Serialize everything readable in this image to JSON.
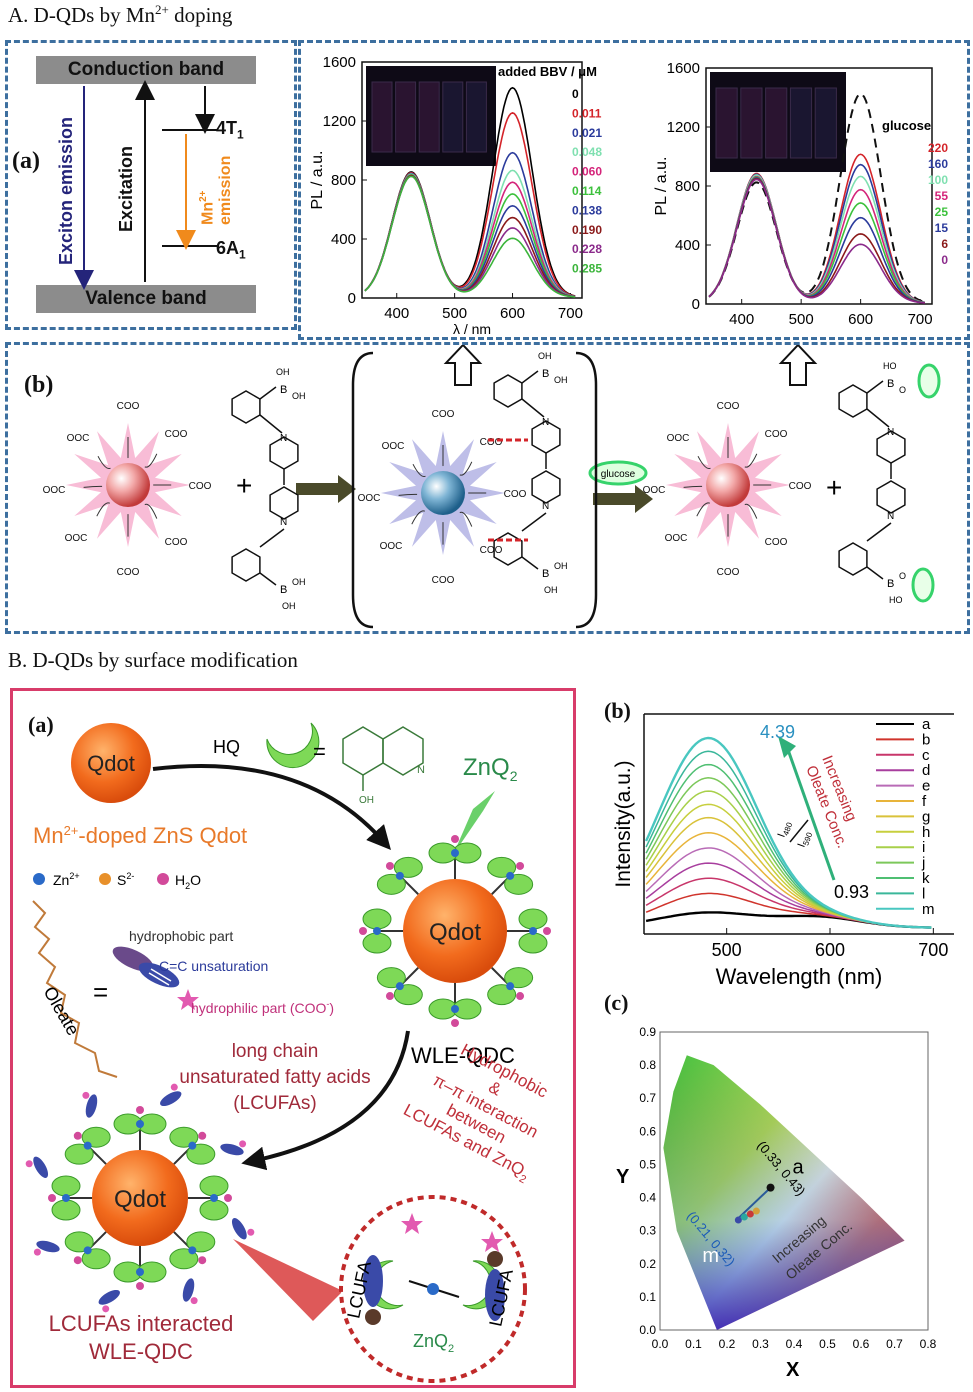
{
  "sectionA": {
    "title": "A. D-QDs by Mn",
    "title_sup": "2+",
    "title_tail": " doping",
    "panel_a_label": "(a)",
    "panel_b_label": "(b)",
    "diagram": {
      "conduction_band": "Conduction band",
      "valence_band": "Valence band",
      "exciton_emission": "Exciton emission",
      "excitation": "Excitation",
      "level_4t1": "4T",
      "level_4t1_sub": "1",
      "level_6a1": "6A",
      "level_6a1_sub": "1",
      "mn_emission_line1": "Mn",
      "mn_emission_sup": "2+",
      "mn_emission_line2": "emission"
    },
    "chart1": {
      "ylabel": "PL / a.u.",
      "xlabel": "λ / nm",
      "legend_title": "added BBV / μM",
      "y_ticks": [
        "0",
        "400",
        "800",
        "1200",
        "1600"
      ],
      "x_ticks": [
        "400",
        "500",
        "600",
        "700"
      ]
    },
    "chart2": {
      "ylabel": "PL / a.u.",
      "legend_title": "glucose",
      "y_ticks": [
        "0",
        "400",
        "800",
        "1200",
        "1600"
      ],
      "x_ticks": [
        "400",
        "500",
        "600",
        "700"
      ]
    },
    "scheme": {
      "coo": "COO",
      "ooc": "OOC",
      "plus": "+",
      "glucose": "glucose",
      "oh": "OH",
      "b": "B",
      "n": "N",
      "ho": "HO",
      "o": "O"
    }
  },
  "sectionB": {
    "title": "B. D-QDs by surface modification",
    "panel_a_label": "(a)",
    "panel_b_label": "(b)",
    "panel_c_label": "(c)",
    "qdot": "Qdot",
    "hq": "HQ",
    "equals": "=",
    "oh": "OH",
    "n": "N",
    "znq2": "ZnQ",
    "znq2_sub": "2",
    "mn_doped_zns": "Mn",
    "mn_doped_sup": "2+",
    "mn_doped_tail": "-doped ZnS Qdot",
    "legend_zn": "Zn",
    "legend_zn_sup": "2+",
    "legend_s": "S",
    "legend_s_sup": "2-",
    "legend_h2o": "H",
    "legend_h2o_sub": "2",
    "legend_h2o_tail": "O",
    "oleate": "Oleate",
    "hydrophobic_part": "hydrophobic part",
    "cc_unsaturation": "C=C unsaturation",
    "hydrophilic_part": "hydrophilic part (COO",
    "hydrophilic_sup": "-",
    "hydrophilic_tail": ")",
    "wle_qdc": "WLE-QDC",
    "lcufa_line1": "long chain",
    "lcufa_line2": "unsaturated fatty acids",
    "lcufa_line3": "(LCUFAs)",
    "interaction_line1": "Hydrophobic",
    "interaction_line2": "&",
    "interaction_line3": "π–π interaction",
    "interaction_line4": "between",
    "interaction_line5": "LCUFAs and ZnQ",
    "interaction_sub": "2",
    "lcufas_interacted_line1": "LCUFAs interacted",
    "lcufas_interacted_line2": "WLE-QDC",
    "lcufa": "LCUFA",
    "chart_b": {
      "ylabel": "Intensity(a.u.)",
      "xlabel": "Wavelength (nm)",
      "x_ticks": [
        "500",
        "600",
        "700"
      ],
      "ratio_high": "4.39",
      "ratio_low": "0.93",
      "i480": "I",
      "i480_sub": "480",
      "i590": "I",
      "i590_sub": "590",
      "arrow_text_1": "Increasing",
      "arrow_text_2": "Oleate Conc.",
      "legend": [
        "a",
        "b",
        "c",
        "d",
        "e",
        "f",
        "g",
        "h",
        "i",
        "j",
        "k",
        "l",
        "m"
      ]
    },
    "chart_c": {
      "ylabel": "Y",
      "xlabel": "X",
      "x_ticks": [
        "0.0",
        "0.1",
        "0.2",
        "0.3",
        "0.4",
        "0.5",
        "0.6",
        "0.7",
        "0.8"
      ],
      "y_ticks": [
        "0.0",
        "0.1",
        "0.2",
        "0.3",
        "0.4",
        "0.5",
        "0.6",
        "0.7",
        "0.8",
        "0.9"
      ],
      "point_a_label": "a",
      "point_a_coord": "(0.33, 0.43)",
      "point_m_label": "m",
      "point_m_coord": "(0.21, 0.32)",
      "arrow_text_1": "Increasing",
      "arrow_text_2": "Oleate Conc."
    }
  },
  "chart_data": [
    {
      "type": "line",
      "xlabel": "λ / nm",
      "ylabel": "PL / a.u.",
      "xlim": [
        340,
        720
      ],
      "ylim": [
        0,
        1600
      ],
      "legend_title": "added BBV / μM",
      "legend_position": "top-right",
      "blue_peak_x": 425,
      "red_peak_x": 600,
      "series": [
        {
          "name": "0",
          "color": "#000000",
          "blue_peak": 850,
          "red_peak": 1420
        },
        {
          "name": "0.011",
          "color": "#d4242a",
          "blue_peak": 845,
          "red_peak": 1250
        },
        {
          "name": "0.021",
          "color": "#2b3b9c",
          "blue_peak": 840,
          "red_peak": 980
        },
        {
          "name": "0.048",
          "color": "#7fe0b0",
          "blue_peak": 835,
          "red_peak": 860
        },
        {
          "name": "0.060",
          "color": "#d4247a",
          "blue_peak": 830,
          "red_peak": 780
        },
        {
          "name": "0.114",
          "color": "#3cc13c",
          "blue_peak": 830,
          "red_peak": 700
        },
        {
          "name": "0.138",
          "color": "#2b3b9c",
          "blue_peak": 825,
          "red_peak": 620
        },
        {
          "name": "0.190",
          "color": "#8b1a1a",
          "blue_peak": 825,
          "red_peak": 540
        },
        {
          "name": "0.228",
          "color": "#8b2a8b",
          "blue_peak": 820,
          "red_peak": 470
        },
        {
          "name": "0.285",
          "color": "#3cb53c",
          "blue_peak": 820,
          "red_peak": 400
        }
      ]
    },
    {
      "type": "line",
      "xlabel": "",
      "ylabel": "PL / a.u.",
      "xlim": [
        340,
        720
      ],
      "ylim": [
        0,
        1600
      ],
      "legend_title": "glucose",
      "legend_position": "right",
      "blue_peak_x": 425,
      "red_peak_x": 600,
      "series": [
        {
          "name": "",
          "color": "#111111",
          "dashed": true,
          "blue_peak": 820,
          "red_peak": 1420
        },
        {
          "name": "220",
          "color": "#d4242a",
          "blue_peak": 880,
          "red_peak": 1010
        },
        {
          "name": "160",
          "color": "#2b3b9c",
          "blue_peak": 875,
          "red_peak": 940
        },
        {
          "name": "100",
          "color": "#7fe0b0",
          "blue_peak": 870,
          "red_peak": 860
        },
        {
          "name": "55",
          "color": "#d4247a",
          "blue_peak": 860,
          "red_peak": 770
        },
        {
          "name": "25",
          "color": "#3cc13c",
          "blue_peak": 855,
          "red_peak": 680
        },
        {
          "name": "15",
          "color": "#2b3b9c",
          "blue_peak": 850,
          "red_peak": 580
        },
        {
          "name": "6",
          "color": "#8b1a1a",
          "blue_peak": 845,
          "red_peak": 470
        },
        {
          "name": "0",
          "color": "#8b2a8b",
          "blue_peak": 840,
          "red_peak": 400
        }
      ]
    },
    {
      "type": "line",
      "xlabel": "Wavelength (nm)",
      "ylabel": "Intensity(a.u.)",
      "xlim": [
        420,
        720
      ],
      "legend_position": "right",
      "series": [
        {
          "name": "a",
          "color": "#000000",
          "peak": 0.08
        },
        {
          "name": "b",
          "color": "#d0342c",
          "peak": 0.18
        },
        {
          "name": "c",
          "color": "#c8366a",
          "peak": 0.26
        },
        {
          "name": "d",
          "color": "#a83e9e",
          "peak": 0.34
        },
        {
          "name": "e",
          "color": "#b96bb6",
          "peak": 0.42
        },
        {
          "name": "f",
          "color": "#e8b43a",
          "peak": 0.5
        },
        {
          "name": "g",
          "color": "#d9c23a",
          "peak": 0.58
        },
        {
          "name": "h",
          "color": "#c7cf3e",
          "peak": 0.65
        },
        {
          "name": "i",
          "color": "#a8d04a",
          "peak": 0.72
        },
        {
          "name": "j",
          "color": "#7cc85a",
          "peak": 0.79
        },
        {
          "name": "k",
          "color": "#4fbf72",
          "peak": 0.86
        },
        {
          "name": "l",
          "color": "#3ab79a",
          "peak": 0.93
        },
        {
          "name": "m",
          "color": "#49c7c0",
          "peak": 1.0
        }
      ]
    },
    {
      "type": "scatter",
      "xlabel": "X",
      "ylabel": "Y",
      "xlim": [
        0,
        0.8
      ],
      "ylim": [
        0,
        0.9
      ],
      "points": [
        {
          "label": "a",
          "x": 0.33,
          "y": 0.43
        },
        {
          "label": "m",
          "x": 0.21,
          "y": 0.32
        }
      ]
    }
  ]
}
